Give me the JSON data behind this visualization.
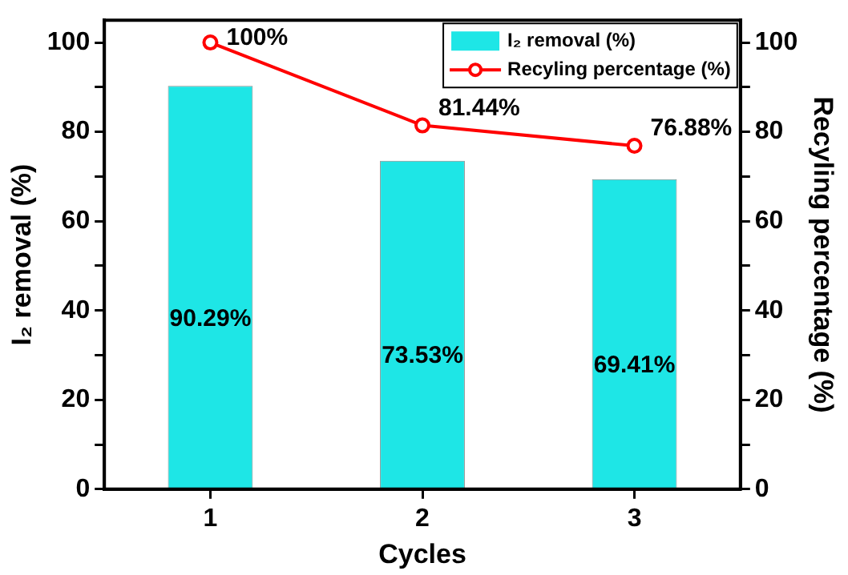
{
  "chart_data": {
    "type": "bar",
    "xlabel": "Cycles",
    "ylabel": "I₂ removal (%)",
    "y2label": "Recyling percentage (%)",
    "categories": [
      "1",
      "2",
      "3"
    ],
    "series": [
      {
        "name": "I₂ removal (%)",
        "color": "#1ee6e6",
        "values": [
          90.29,
          73.53,
          69.41
        ],
        "value_labels": [
          "90.29%",
          "73.53%",
          "69.41%"
        ]
      },
      {
        "name": "Recyling percentage (%)",
        "type": "line",
        "axis": "y2",
        "color": "#ff0000",
        "values": [
          100,
          81.44,
          76.88
        ],
        "value_labels": [
          "100%",
          "81.44%",
          "76.88%"
        ]
      }
    ],
    "ylim": [
      0,
      105
    ],
    "yticks": [
      0,
      {
        "value": 10,
        "label": null
      },
      20,
      {
        "value": 30,
        "label": null
      },
      40,
      {
        "value": 50,
        "label": null
      },
      60,
      {
        "value": 70,
        "label": null
      },
      80,
      {
        "value": 90,
        "label": null
      },
      100
    ],
    "y2lim": [
      0,
      105
    ],
    "y2ticks": [
      0,
      {
        "value": 10,
        "label": null
      },
      20,
      {
        "value": 30,
        "label": null
      },
      40,
      {
        "value": 50,
        "label": null
      },
      60,
      {
        "value": 70,
        "label": null
      },
      80,
      {
        "value": 90,
        "label": null
      },
      100
    ],
    "grid": false,
    "legend": "top right",
    "marker": "circle",
    "line_style": "solid"
  }
}
